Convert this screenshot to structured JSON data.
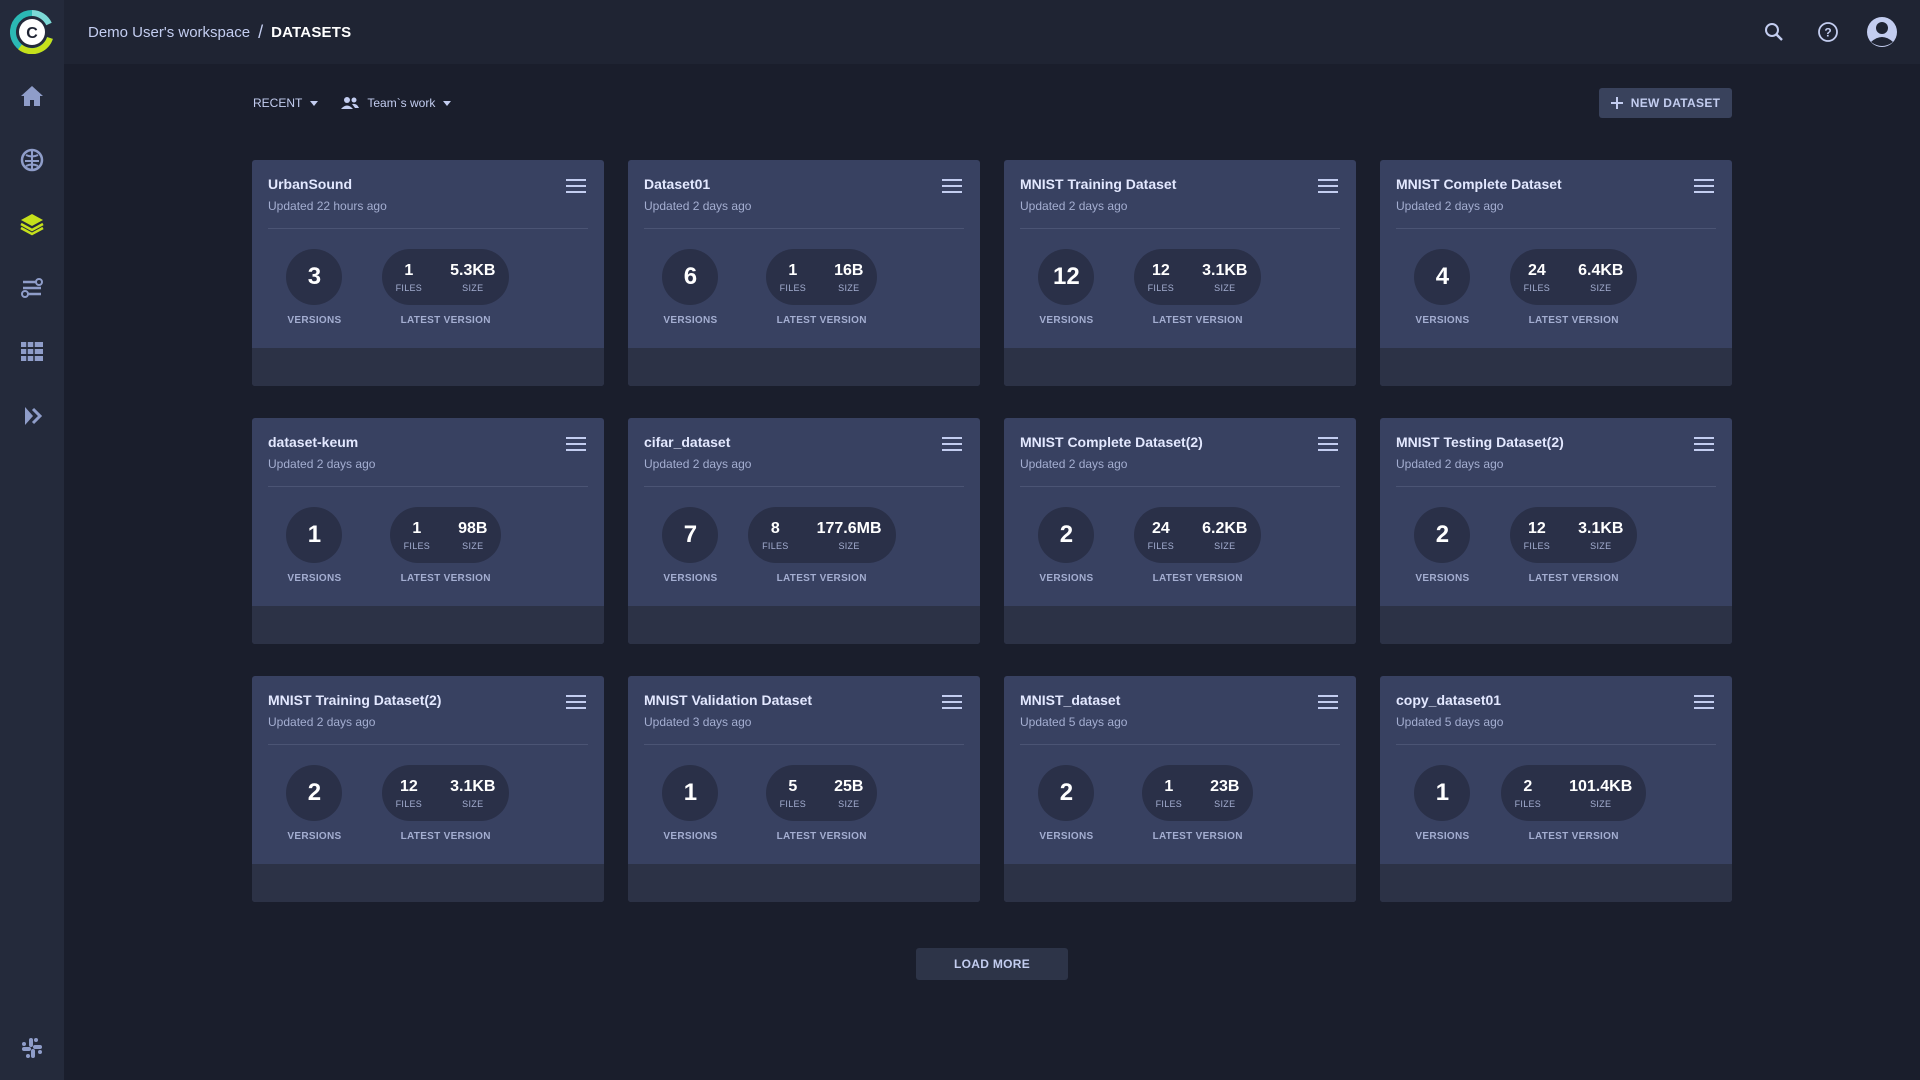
{
  "header": {
    "workspace": "Demo User's workspace",
    "separator": "/",
    "current": "DATASETS"
  },
  "sidebar": {
    "items": [
      {
        "icon": "home-icon"
      },
      {
        "icon": "brain-icon"
      },
      {
        "icon": "layers-icon",
        "active": true
      },
      {
        "icon": "pipelines-icon"
      },
      {
        "icon": "table-icon"
      },
      {
        "icon": "deploy-icon"
      }
    ],
    "bottom_icon": "slack-icon"
  },
  "toolbar": {
    "sort_label": "RECENT",
    "team_label": "Team`s work",
    "new_dataset_label": "NEW DATASET"
  },
  "labels": {
    "versions": "VERSIONS",
    "latest_version": "LATEST VERSION",
    "files": "FILES",
    "size": "SIZE"
  },
  "datasets": [
    {
      "name": "UrbanSound",
      "updated": "Updated 22 hours ago",
      "versions": "3",
      "files": "1",
      "size": "5.3KB"
    },
    {
      "name": "Dataset01",
      "updated": "Updated 2 days ago",
      "versions": "6",
      "files": "1",
      "size": "16B"
    },
    {
      "name": "MNIST Training Dataset",
      "updated": "Updated 2 days ago",
      "versions": "12",
      "files": "12",
      "size": "3.1KB"
    },
    {
      "name": "MNIST Complete Dataset",
      "updated": "Updated 2 days ago",
      "versions": "4",
      "files": "24",
      "size": "6.4KB"
    },
    {
      "name": "dataset-keum",
      "updated": "Updated 2 days ago",
      "versions": "1",
      "files": "1",
      "size": "98B"
    },
    {
      "name": "cifar_dataset",
      "updated": "Updated 2 days ago",
      "versions": "7",
      "files": "8",
      "size": "177.6MB"
    },
    {
      "name": "MNIST Complete Dataset(2)",
      "updated": "Updated 2 days ago",
      "versions": "2",
      "files": "24",
      "size": "6.2KB"
    },
    {
      "name": "MNIST Testing Dataset(2)",
      "updated": "Updated 2 days ago",
      "versions": "2",
      "files": "12",
      "size": "3.1KB"
    },
    {
      "name": "MNIST Training Dataset(2)",
      "updated": "Updated 2 days ago",
      "versions": "2",
      "files": "12",
      "size": "3.1KB"
    },
    {
      "name": "MNIST Validation Dataset",
      "updated": "Updated 3 days ago",
      "versions": "1",
      "files": "5",
      "size": "25B"
    },
    {
      "name": "MNIST_dataset",
      "updated": "Updated 5 days ago",
      "versions": "2",
      "files": "1",
      "size": "23B"
    },
    {
      "name": "copy_dataset01",
      "updated": "Updated 5 days ago",
      "versions": "1",
      "files": "2",
      "size": "101.4KB"
    }
  ],
  "load_more_label": "LOAD MORE",
  "colors": {
    "accent": "#c5e01b",
    "background": "#1a1e2c",
    "card": "#384161"
  }
}
